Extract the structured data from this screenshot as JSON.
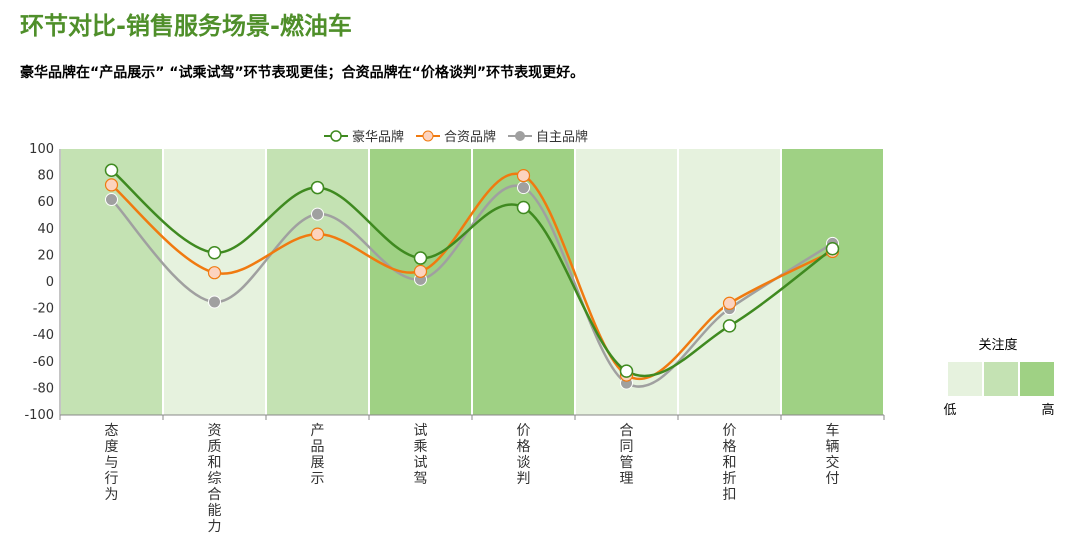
{
  "header": {
    "title": "环节对比-销售服务场景-燃油车",
    "subtitle": "豪华品牌在“产品展示” “试乘试驾”环节表现更佳；合资品牌在“价格谈判”环节表现更好。"
  },
  "chart_data": {
    "type": "line",
    "categories": [
      "态度与行为",
      "资质和综合能力",
      "产品展示",
      "试乘试驾",
      "价格谈判",
      "合同管理",
      "价格和折扣",
      "车辆交付"
    ],
    "ylim": [
      -100,
      100
    ],
    "yticks": [
      100,
      80,
      60,
      40,
      20,
      0,
      -20,
      -40,
      -60,
      -80,
      -100
    ],
    "smooth": true,
    "legend_position": "top",
    "series": [
      {
        "name": "豪华品牌",
        "color": "#3f8a20",
        "marker": "open-circle",
        "values": [
          84,
          22,
          71,
          18,
          56,
          -67,
          -33,
          25
        ]
      },
      {
        "name": "合资品牌",
        "color": "#f07a10",
        "marker": "filled-circle",
        "values": [
          73,
          7,
          36,
          8,
          80,
          -70,
          -16,
          23
        ]
      },
      {
        "name": "自主品牌",
        "color": "#a0a0a0",
        "marker": "filled-circle",
        "values": [
          62,
          -15,
          51,
          2,
          71,
          -76,
          -20,
          29
        ]
      }
    ],
    "background_levels": [
      2,
      1,
      2,
      3,
      3,
      1,
      1,
      3
    ],
    "visual_map": {
      "title": "关注度",
      "low_label": "低",
      "high_label": "高",
      "colors": [
        "#e6f2de",
        "#c4e2b3",
        "#9fd184"
      ]
    }
  }
}
